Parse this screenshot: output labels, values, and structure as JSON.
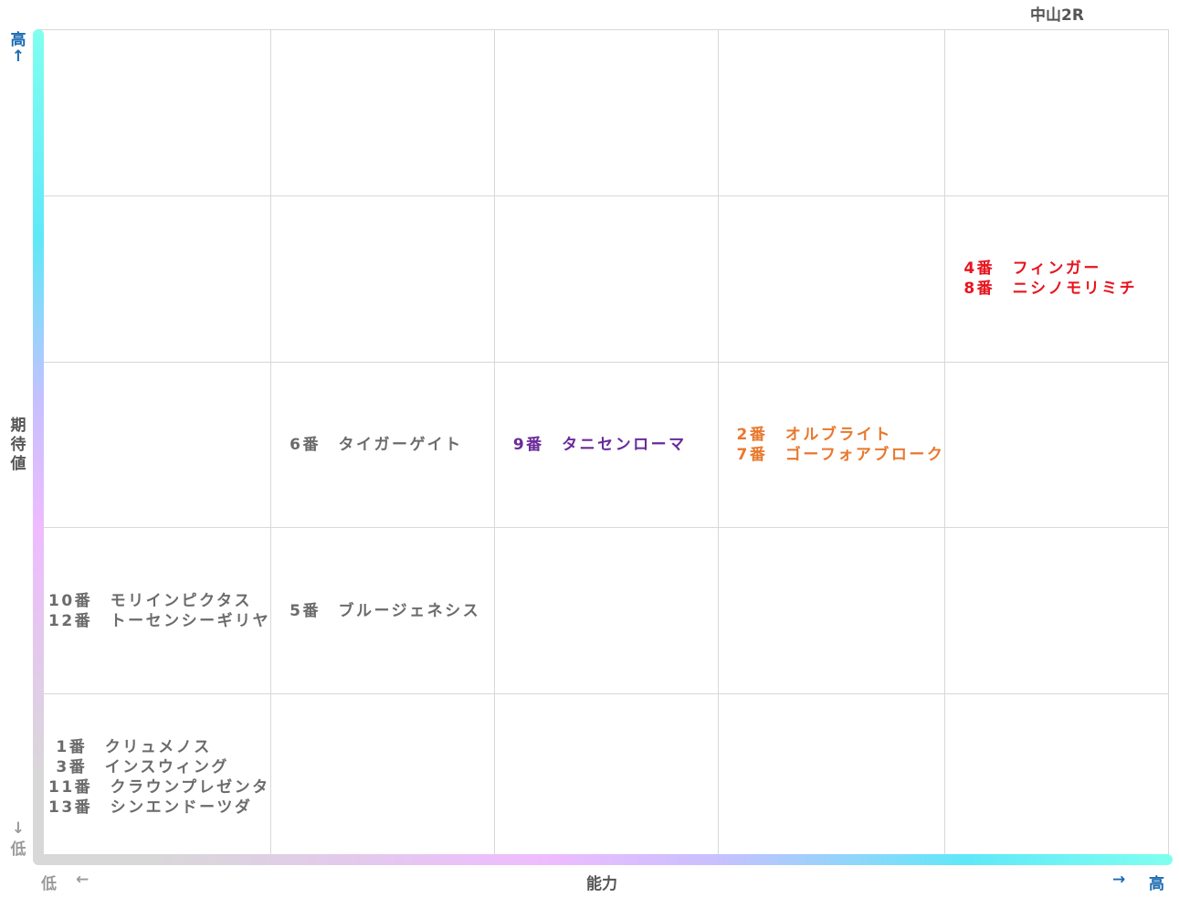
{
  "title": "中山2R",
  "y_axis": {
    "high": "高",
    "high_arrow": "↑",
    "label_chars": [
      "期",
      "待",
      "値"
    ],
    "low_arrow": "↓",
    "low": "低"
  },
  "x_axis": {
    "low": "低",
    "low_arrow": "←",
    "label": "能力",
    "high_arrow": "→",
    "high": "高"
  },
  "colors": {
    "red": "#e8141e",
    "orange": "#e8782c",
    "purple": "#6a2a9a",
    "gray": "#6b6b6b",
    "axis_text": "#1a6bb3"
  },
  "cells": [
    {
      "row": 1,
      "col": 4,
      "color": "red",
      "entries": [
        "4番　フィンガー",
        "8番　ニシノモリミチ"
      ]
    },
    {
      "row": 2,
      "col": 1,
      "color": "gray",
      "entries": [
        "6番　タイガーゲイト"
      ]
    },
    {
      "row": 2,
      "col": 2,
      "color": "purple",
      "entries": [
        "9番　タニセンローマ"
      ]
    },
    {
      "row": 2,
      "col": 3,
      "color": "orange",
      "entries": [
        "2番　オルブライト",
        "7番　ゴーフォアブローク"
      ]
    },
    {
      "row": 3,
      "col": 0,
      "color": "gray",
      "entries": [
        "10番　モリインピクタス",
        "12番　トーセンシーギリヤ"
      ]
    },
    {
      "row": 3,
      "col": 1,
      "color": "gray",
      "entries": [
        "5番　ブルージェネシス"
      ]
    },
    {
      "row": 4,
      "col": 0,
      "color": "gray",
      "entries": [
        " 1番　クリュメノス",
        " 3番　インスウィング",
        "11番　クラウンプレゼンタ",
        "13番　シンエンドーツダ"
      ]
    }
  ]
}
